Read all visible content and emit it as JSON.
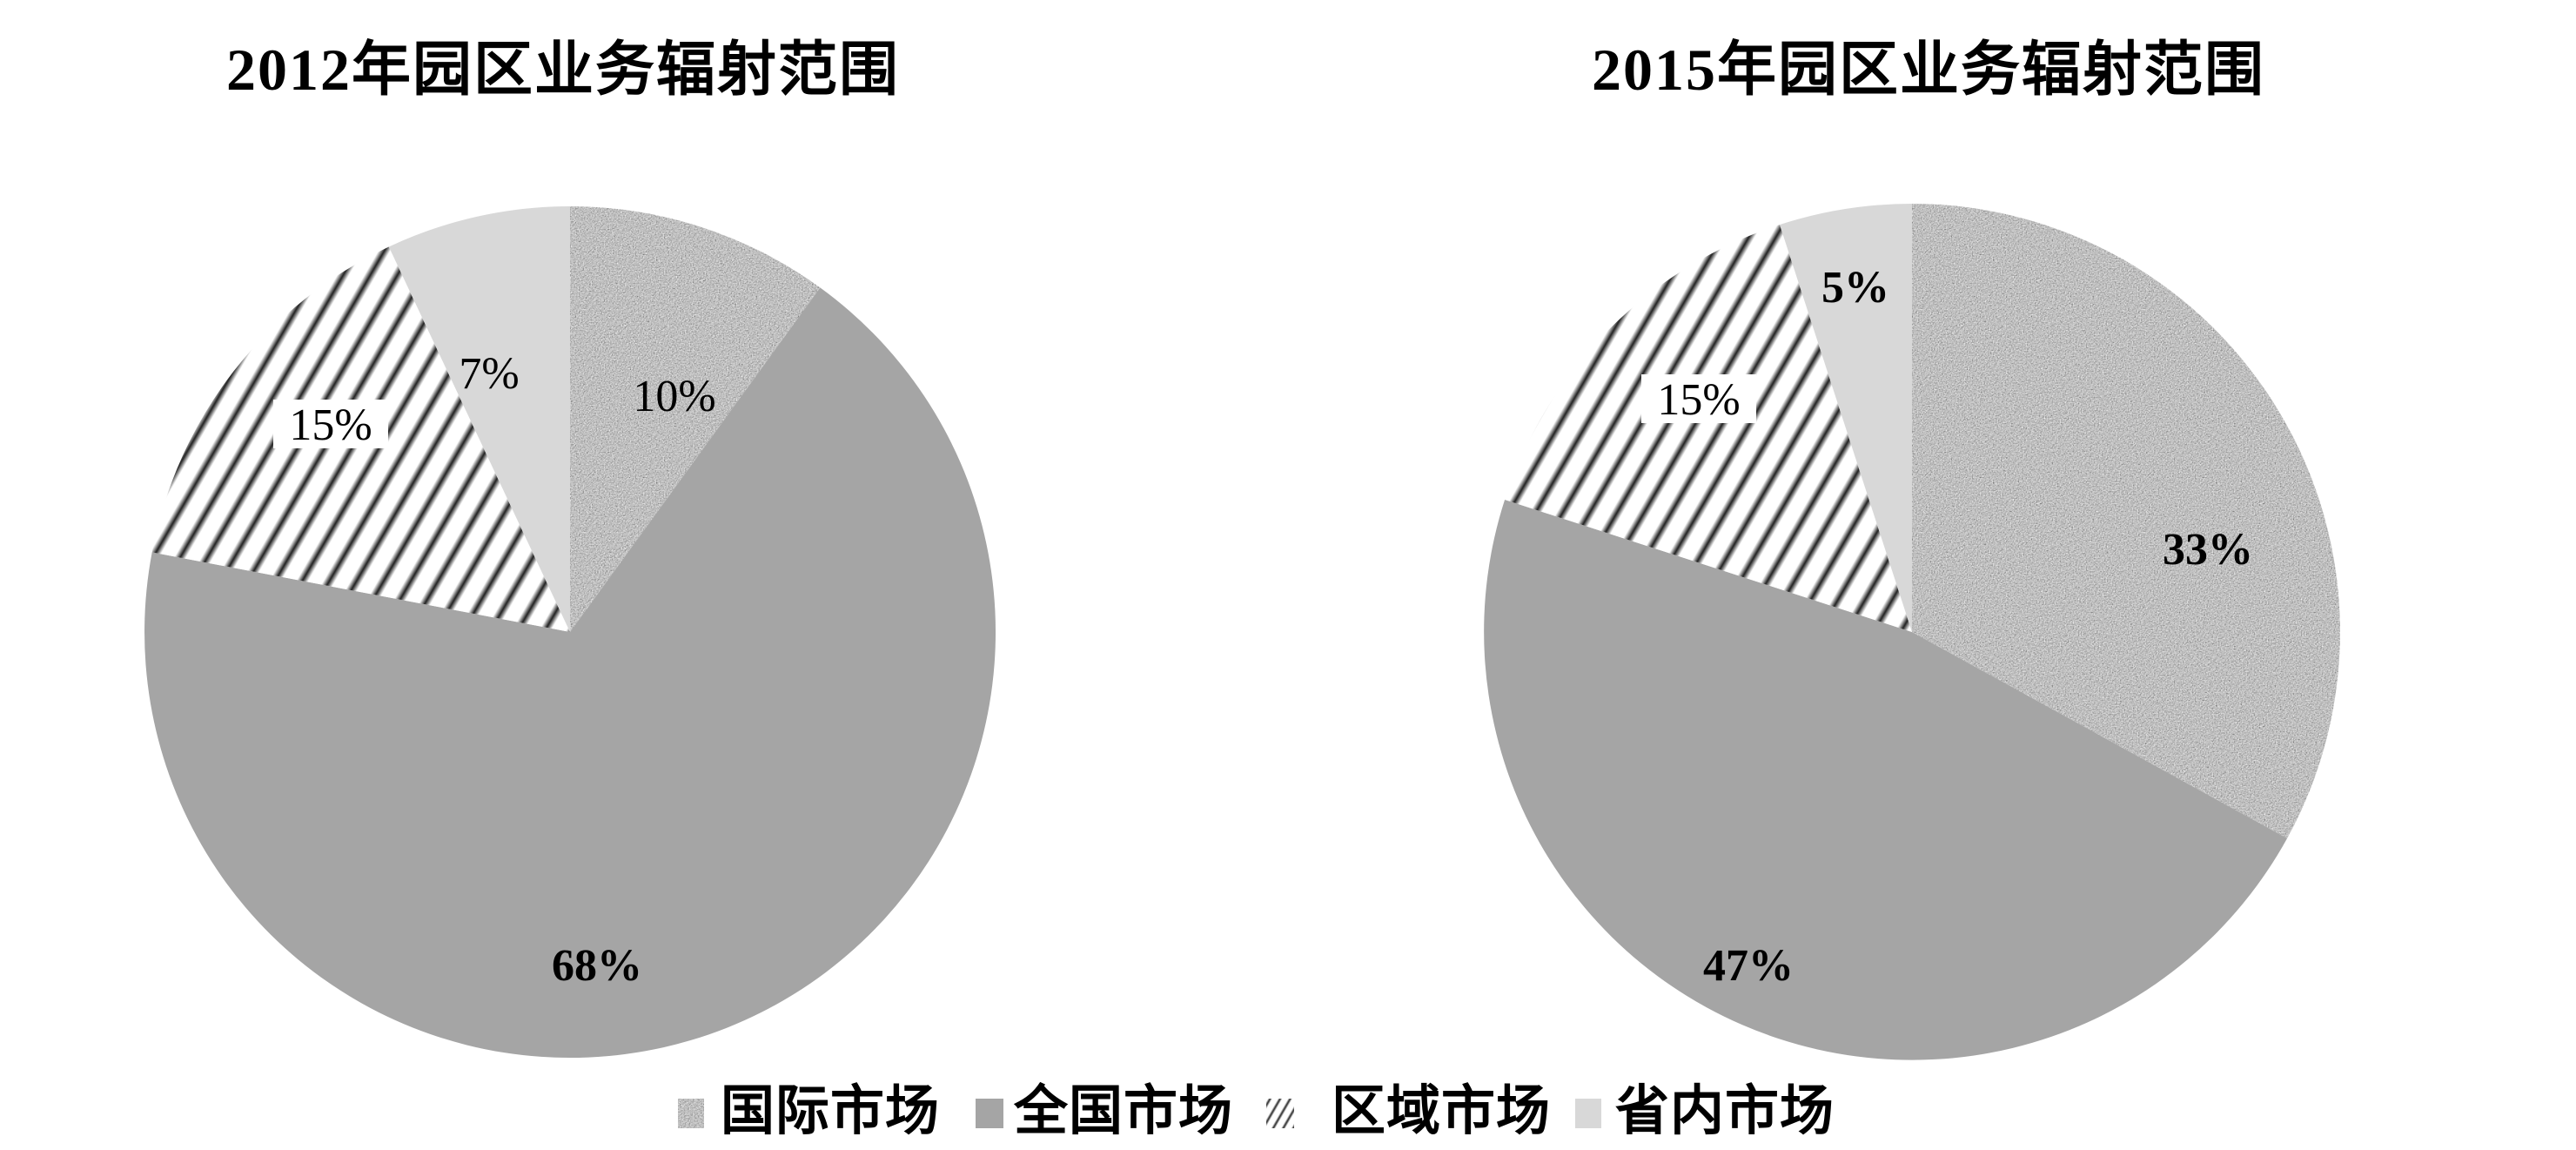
{
  "page": {
    "background": "#ffffff"
  },
  "chart_data": [
    {
      "type": "pie",
      "title": "2012年园区业务辐射范围",
      "categories": [
        "国际市场",
        "全国市场",
        "区域市场",
        "省内市场"
      ],
      "values": [
        10,
        68,
        15,
        7
      ],
      "labels": [
        "10%",
        "68%",
        "15%",
        "7%"
      ],
      "start_angle_deg": 0,
      "direction": "clockwise",
      "legend_position": "bottom"
    },
    {
      "type": "pie",
      "title": "2015年园区业务辐射范围",
      "categories": [
        "国际市场",
        "全国市场",
        "区域市场",
        "省内市场"
      ],
      "values": [
        33,
        47,
        15,
        5
      ],
      "labels": [
        "33%",
        "47%",
        "15%",
        "5%"
      ],
      "start_angle_deg": 0,
      "direction": "clockwise",
      "legend_position": "bottom"
    }
  ],
  "legend": {
    "items": [
      {
        "label": "国际市场",
        "swatch": "speckle"
      },
      {
        "label": "全国市场",
        "swatch": "solid-gray"
      },
      {
        "label": "区域市场",
        "swatch": "stripes"
      },
      {
        "label": "省内市场",
        "swatch": "light-gray"
      }
    ]
  },
  "colors": {
    "solid_gray": "#a5a5a5",
    "light_gray": "#d8d8d8",
    "speckle_mean": "#878787",
    "stripe_dark": "#1f1f1f",
    "text": "#000000",
    "background": "#ffffff"
  }
}
